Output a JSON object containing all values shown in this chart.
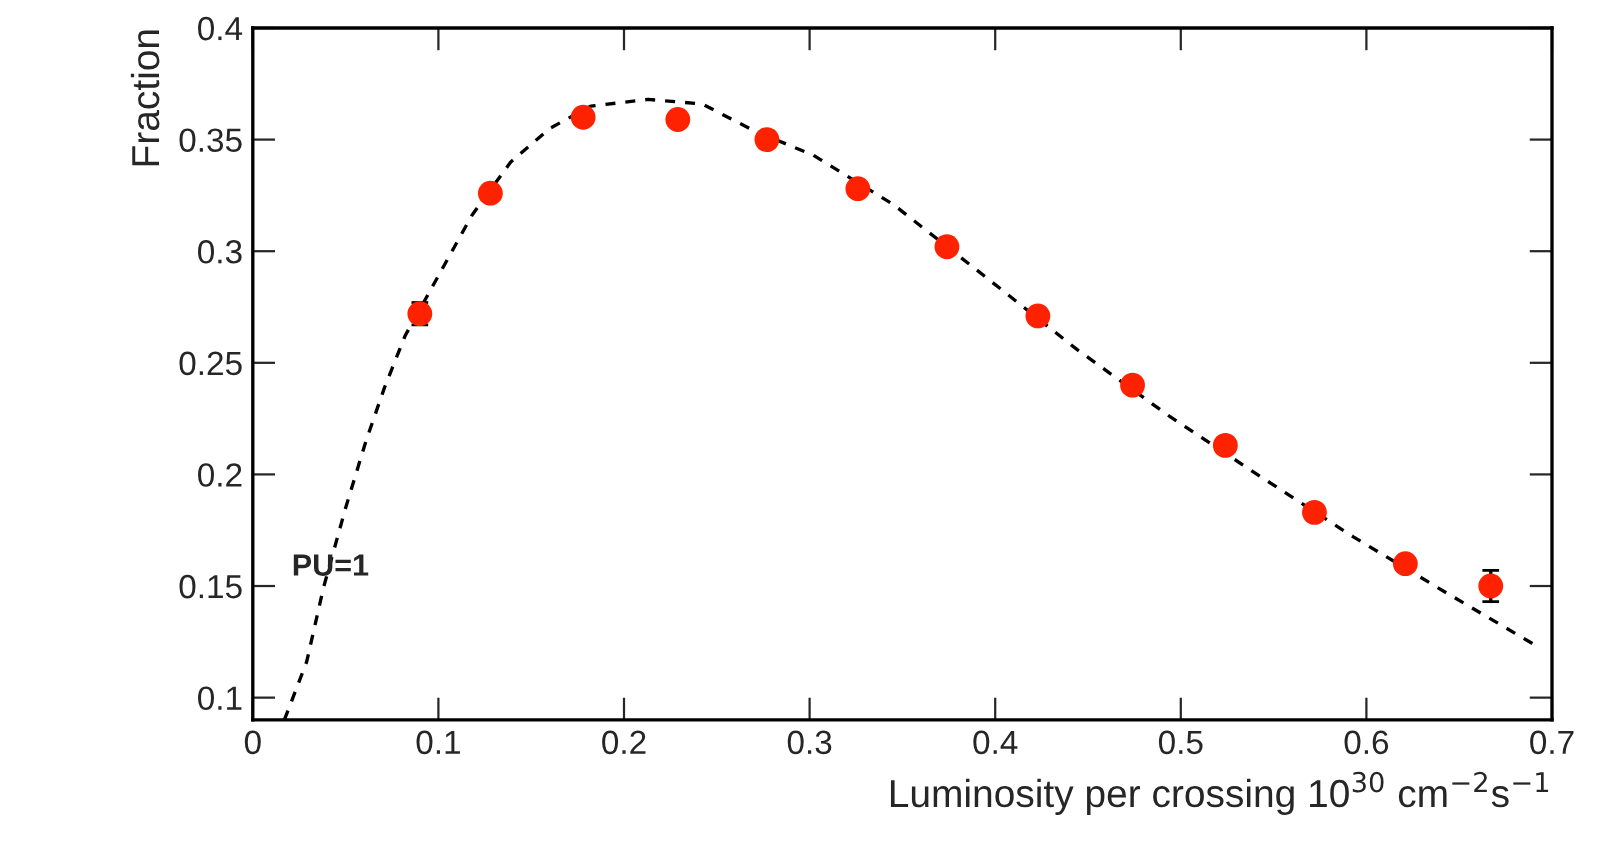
{
  "chart_data": {
    "type": "scatter",
    "xlabel": "Luminosity per crossing 10$^{30}$ cm$^{−2}$s$^{−1}$",
    "ylabel": "Fraction",
    "annotations": [
      "PU=1"
    ],
    "xlim": [
      0,
      0.7
    ],
    "ylim": [
      0.09,
      0.4
    ],
    "xticks": [
      0,
      0.1,
      0.2,
      0.3,
      0.4,
      0.5,
      0.6,
      0.7
    ],
    "yticks": [
      0.1,
      0.15,
      0.2,
      0.25,
      0.3,
      0.35,
      0.4
    ],
    "grid": false,
    "legend": false,
    "series": [
      {
        "color": "#ff2200",
        "marker": "circle",
        "x": [
          0.09,
          0.128,
          0.178,
          0.229,
          0.277,
          0.326,
          0.374,
          0.423,
          0.474,
          0.524,
          0.572,
          0.621,
          0.667
        ],
        "values": [
          0.272,
          0.326,
          0.36,
          0.359,
          0.35,
          0.328,
          0.302,
          0.271,
          0.24,
          0.213,
          0.183,
          0.16,
          0.15
        ],
        "errors": [
          0.005,
          null,
          null,
          null,
          null,
          null,
          null,
          null,
          null,
          null,
          null,
          null,
          0.007
        ]
      },
      {
        "type": "line",
        "color": "#000000",
        "line_style": "dashed",
        "marker": "none",
        "x": [
          0.017,
          0.029,
          0.038,
          0.05,
          0.061,
          0.071,
          0.082,
          0.1,
          0.118,
          0.139,
          0.16,
          0.182,
          0.213,
          0.242,
          0.27,
          0.302,
          0.345,
          0.394,
          0.444,
          0.494,
          0.543,
          0.593,
          0.643,
          0.692
        ],
        "values": [
          0.09,
          0.116,
          0.149,
          0.185,
          0.215,
          0.239,
          0.262,
          0.289,
          0.316,
          0.34,
          0.355,
          0.365,
          0.368,
          0.366,
          0.354,
          0.343,
          0.321,
          0.289,
          0.256,
          0.226,
          0.199,
          0.172,
          0.147,
          0.123
        ]
      }
    ]
  }
}
